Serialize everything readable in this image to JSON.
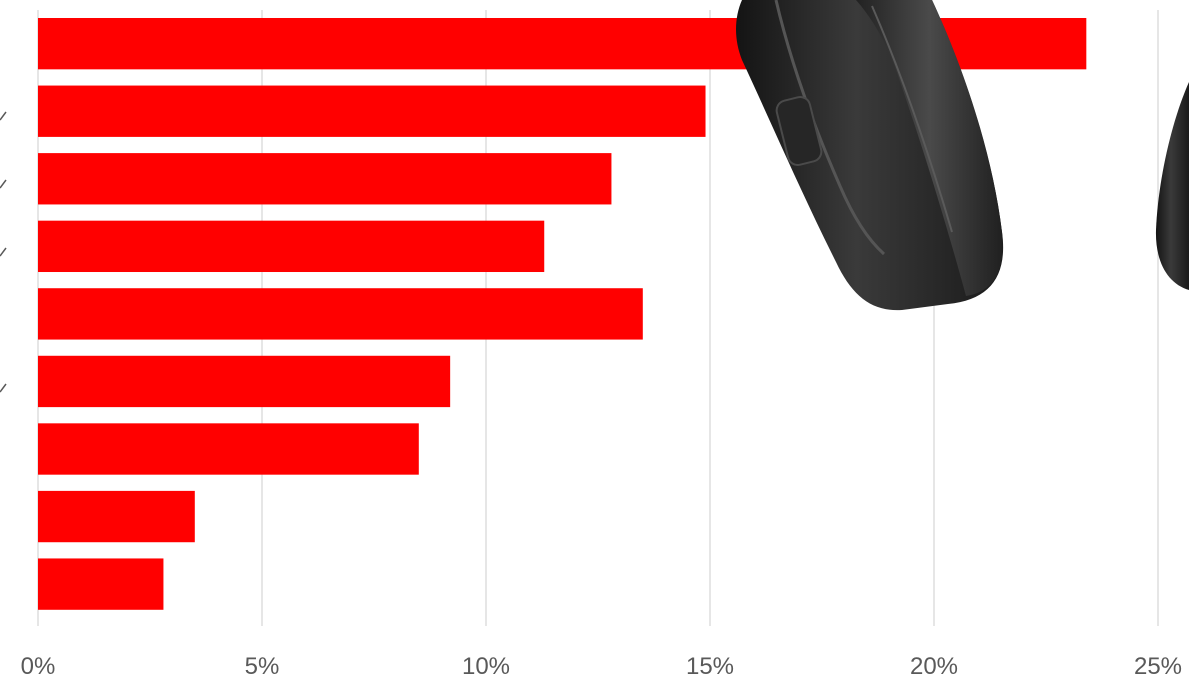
{
  "chart_data": {
    "type": "bar",
    "orientation": "horizontal",
    "categories": [
      "",
      "",
      "",
      "",
      "",
      "",
      "",
      "",
      ""
    ],
    "values": [
      23.4,
      14.9,
      12.8,
      11.3,
      13.5,
      9.2,
      8.5,
      3.5,
      2.8
    ],
    "xlim": [
      0,
      25
    ],
    "xticks": [
      0,
      5,
      10,
      15,
      20,
      25
    ],
    "xtick_labels": [
      "0%",
      "5%",
      "10%",
      "15%",
      "20%",
      "25%"
    ],
    "grid": "vertical",
    "legend": "none",
    "bar_color": "#ff0000",
    "grid_color": "#d9d9d9"
  },
  "decoration": {
    "image": "headphones-photo",
    "color": "#2b2b2b"
  }
}
